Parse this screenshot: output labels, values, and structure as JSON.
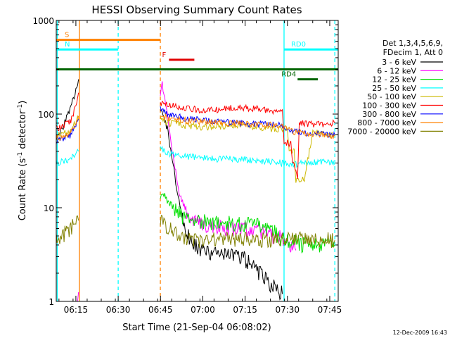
{
  "chart_data": {
    "type": "line",
    "title": "HESSI Observing Summary Count Rates",
    "xlabel": "Start Time (21-Sep-04 06:08:02)",
    "ylabel_main": "Count Rate (s",
    "ylabel_sup1": "-1",
    "ylabel_mid": " detector",
    "ylabel_sup2": "-1",
    "ylabel_end": ")",
    "ylog": true,
    "ylim": [
      1,
      1000
    ],
    "xlim": [
      6.134,
      7.8
    ],
    "x_ticks": [
      {
        "v": 6.25,
        "label": "06:15"
      },
      {
        "v": 6.5,
        "label": "06:30"
      },
      {
        "v": 6.75,
        "label": "06:45"
      },
      {
        "v": 7.0,
        "label": "07:00"
      },
      {
        "v": 7.25,
        "label": "07:15"
      },
      {
        "v": 7.5,
        "label": "07:30"
      },
      {
        "v": 7.75,
        "label": "07:45"
      }
    ],
    "y_ticks": [
      {
        "v": 1,
        "label": "1"
      },
      {
        "v": 10,
        "label": "10"
      },
      {
        "v": 100,
        "label": "100"
      },
      {
        "v": 1000,
        "label": "1000"
      }
    ],
    "legend": {
      "header1": "Det 1,3,4,5,6,9,",
      "header2": "FDecim 1, Att 0",
      "placement": "right"
    },
    "series": [
      {
        "name": "3 - 6 keV",
        "color": "#000000",
        "x": [
          6.134,
          6.17,
          6.22,
          6.26,
          6.271,
          6.749,
          6.76,
          6.79,
          6.83,
          6.87,
          6.91,
          6.95,
          7.0,
          7.05,
          7.1,
          7.15,
          7.2,
          7.25,
          7.3,
          7.36,
          7.4,
          7.43,
          7.47
        ],
        "y": [
          55,
          70,
          120,
          200,
          240,
          110,
          100,
          70,
          25,
          9,
          5,
          4,
          3.5,
          3.3,
          3.2,
          3.1,
          3.0,
          2.8,
          2.3,
          1.8,
          1.5,
          1.4,
          1.2
        ]
      },
      {
        "name": "6 - 12 keV",
        "color": "#ff00ff",
        "x": [
          6.25,
          6.26,
          6.271,
          6.749,
          6.76,
          6.78,
          6.82,
          6.86,
          6.9,
          6.95,
          7.0,
          7.1,
          7.2,
          7.3,
          7.36,
          7.4,
          7.5,
          7.55
        ],
        "y": [
          1.0,
          1.2,
          1.5,
          150,
          210,
          130,
          40,
          15,
          9,
          7,
          6.5,
          6.2,
          6.0,
          5.8,
          5.5,
          5.0,
          4.5,
          3.5
        ]
      },
      {
        "name": "12 - 25 keV",
        "color": "#00e000",
        "x": [
          6.749,
          6.76,
          6.79,
          6.83,
          6.88,
          6.95,
          7.05,
          7.15,
          7.25,
          7.35,
          7.4,
          7.47,
          7.5,
          7.55,
          7.58,
          7.65,
          7.75,
          7.78
        ],
        "y": [
          13,
          15,
          12,
          10,
          8,
          7.2,
          7.0,
          6.8,
          6.6,
          6.3,
          6.0,
          4.5,
          4.5,
          4.5,
          4.0,
          4.0,
          4.0,
          4.0
        ]
      },
      {
        "name": "25 - 50 keV",
        "color": "#00ffff",
        "x": [
          6.134,
          6.17,
          6.22,
          6.26,
          6.271,
          6.749,
          6.76,
          6.8,
          6.9,
          7.0,
          7.1,
          7.2,
          7.3,
          7.4,
          7.47,
          7.5,
          7.55,
          7.6,
          7.7,
          7.78
        ],
        "y": [
          30,
          31,
          33,
          40,
          45,
          45,
          42,
          38,
          35,
          34,
          33,
          33,
          32,
          31,
          30,
          30,
          29,
          30,
          31,
          30
        ]
      },
      {
        "name": "50 - 100 keV",
        "color": "#ccb800",
        "x": [
          6.134,
          6.17,
          6.22,
          6.26,
          6.271,
          6.749,
          6.76,
          6.8,
          6.9,
          7.0,
          7.1,
          7.2,
          7.3,
          7.4,
          7.47,
          7.5,
          7.51,
          7.54,
          7.55,
          7.6,
          7.65,
          7.7,
          7.78
        ],
        "y": [
          60,
          62,
          65,
          90,
          100,
          90,
          85,
          80,
          75,
          72,
          73,
          75,
          73,
          70,
          68,
          68,
          40,
          40,
          20,
          20,
          65,
          62,
          58
        ]
      },
      {
        "name": "100 - 300 keV",
        "color": "#ff0000",
        "x": [
          6.134,
          6.17,
          6.22,
          6.26,
          6.271,
          6.749,
          6.76,
          6.8,
          6.9,
          7.0,
          7.1,
          7.2,
          7.3,
          7.4,
          7.47,
          7.48,
          7.52,
          7.53,
          7.56,
          7.57,
          7.65,
          7.7,
          7.78
        ],
        "y": [
          70,
          75,
          85,
          140,
          180,
          140,
          130,
          125,
          115,
          110,
          112,
          118,
          115,
          108,
          105,
          50,
          48,
          30,
          22,
          80,
          78,
          78,
          80
        ]
      },
      {
        "name": "300 - 800 keV",
        "color": "#0000ff",
        "x": [
          6.134,
          6.17,
          6.22,
          6.26,
          6.271,
          6.749,
          6.76,
          6.8,
          6.9,
          7.0,
          7.1,
          7.2,
          7.3,
          7.4,
          7.47,
          7.5,
          7.55,
          7.6,
          7.7,
          7.78
        ],
        "y": [
          52,
          55,
          60,
          85,
          100,
          115,
          110,
          100,
          90,
          85,
          82,
          80,
          78,
          77,
          75,
          70,
          65,
          63,
          62,
          60
        ]
      },
      {
        "name": "800 - 7000 keV",
        "color": "#ff8000",
        "x": [
          6.134,
          6.17,
          6.22,
          6.26,
          6.271,
          6.749,
          6.76,
          6.8,
          6.9,
          7.0,
          7.1,
          7.2,
          7.3,
          7.4,
          7.47,
          7.5,
          7.55,
          7.6,
          7.7,
          7.78
        ],
        "y": [
          55,
          58,
          62,
          90,
          110,
          100,
          95,
          90,
          85,
          82,
          80,
          79,
          78,
          76,
          74,
          68,
          64,
          62,
          60,
          58
        ]
      },
      {
        "name": "7000 - 20000 keV",
        "color": "#808000",
        "x": [
          6.134,
          6.17,
          6.22,
          6.26,
          6.271,
          6.749,
          6.76,
          6.8,
          6.85,
          6.9,
          7.0,
          7.1,
          7.2,
          7.3,
          7.4,
          7.5,
          7.6,
          7.7,
          7.78
        ],
        "y": [
          4.5,
          5,
          6,
          8,
          9,
          7.5,
          7,
          6,
          5,
          4.5,
          4.5,
          4.5,
          4.5,
          4.5,
          4.5,
          4.6,
          4.5,
          4.5,
          4.5
        ]
      }
    ],
    "flag_bars": [
      {
        "label": "S",
        "color": "#ff8000",
        "x0": 6.134,
        "x1": 6.75,
        "y": 620
      },
      {
        "label": "N",
        "color": "#00ffff",
        "x0": 6.134,
        "x1": 6.5,
        "y": 490
      },
      {
        "label": "F",
        "color": "#e00000",
        "x0": 6.8,
        "x1": 6.95,
        "y": 380
      },
      {
        "label": "",
        "color": "#006400",
        "x0": 6.134,
        "x1": 7.8,
        "y": 300
      },
      {
        "label": "RD0",
        "color": "#00ffff",
        "x0": 7.48,
        "x1": 7.8,
        "y": 490
      },
      {
        "label": "RD4",
        "color": "#006400",
        "x0": 7.56,
        "x1": 7.68,
        "y": 235
      }
    ],
    "vlines": [
      {
        "x": 6.271,
        "color": "#ff8000",
        "style": "solid"
      },
      {
        "x": 6.749,
        "color": "#ff8000",
        "style": "dashed"
      },
      {
        "x": 6.5,
        "color": "#00ffff",
        "style": "dashed"
      },
      {
        "x": 7.48,
        "color": "#00ffff",
        "style": "solid"
      },
      {
        "x": 7.78,
        "color": "#00ffff",
        "style": "dashed"
      },
      {
        "x": 6.14,
        "color": "#00ffff",
        "style": "solid"
      }
    ]
  },
  "timestamp": "12-Dec-2009 16:43"
}
